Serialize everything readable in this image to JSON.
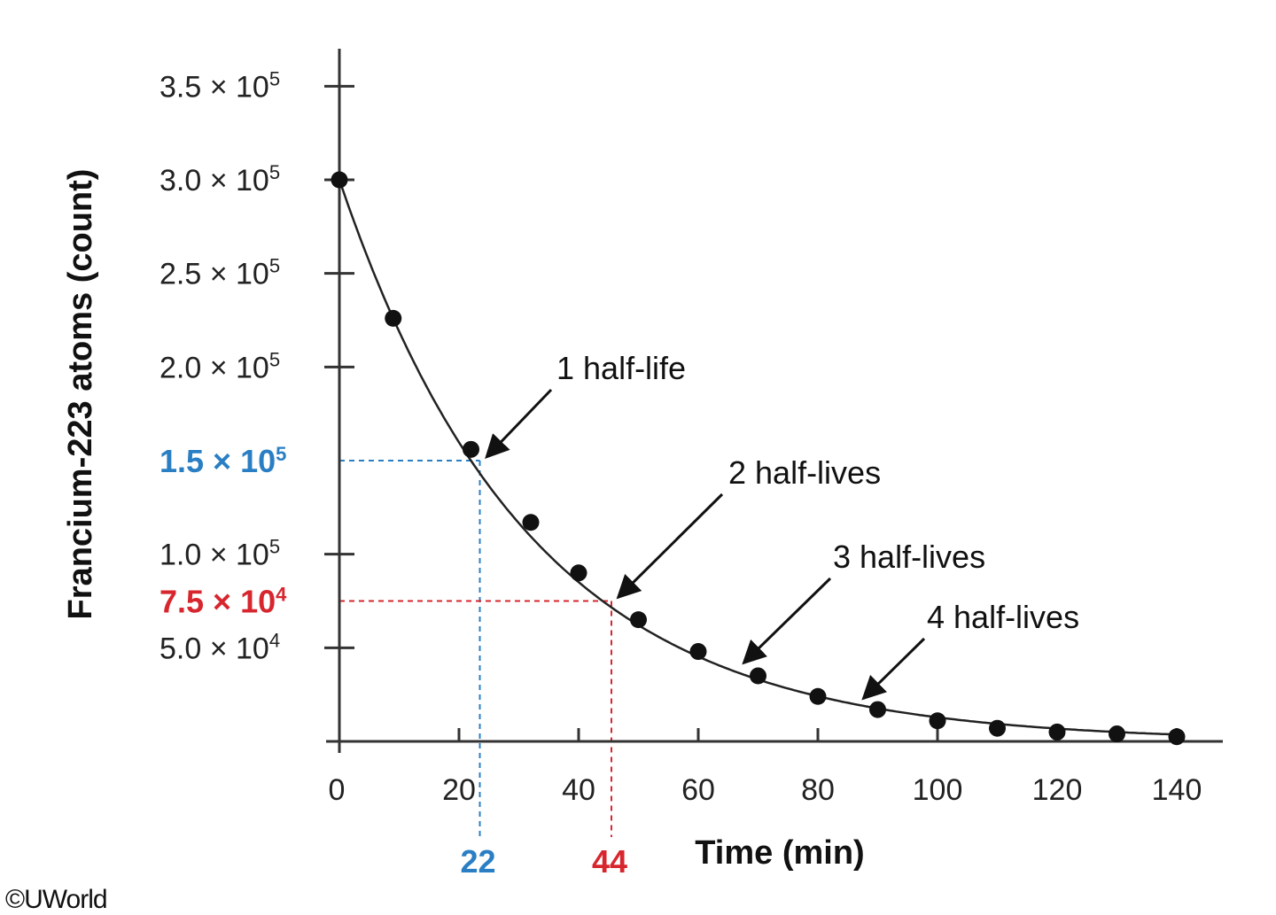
{
  "chart_data": {
    "type": "scatter",
    "title": "",
    "xlabel": "Time (min)",
    "ylabel": "Francium-223 atoms (count)",
    "xlim": [
      0,
      140
    ],
    "ylim": [
      0,
      350000
    ],
    "x_ticks": [
      "0",
      "20",
      "40",
      "60",
      "80",
      "100",
      "120",
      "140"
    ],
    "x_tick_values": [
      0,
      20,
      40,
      60,
      80,
      100,
      120,
      140
    ],
    "y_ticks": [
      {
        "value": 50000,
        "mantissa": "5.0 × 10",
        "exp": "4"
      },
      {
        "value": 100000,
        "mantissa": "1.0 × 10",
        "exp": "5"
      },
      {
        "value": 200000,
        "mantissa": "2.0 × 10",
        "exp": "5"
      },
      {
        "value": 250000,
        "mantissa": "2.5 × 10",
        "exp": "5"
      },
      {
        "value": 300000,
        "mantissa": "3.0 × 10",
        "exp": "5"
      },
      {
        "value": 350000,
        "mantissa": "3.5 × 10",
        "exp": "5"
      }
    ],
    "points": [
      {
        "x": 0,
        "y": 300000
      },
      {
        "x": 9,
        "y": 226000
      },
      {
        "x": 22,
        "y": 156000
      },
      {
        "x": 32,
        "y": 117000
      },
      {
        "x": 40,
        "y": 90000
      },
      {
        "x": 50,
        "y": 65000
      },
      {
        "x": 60,
        "y": 48000
      },
      {
        "x": 70,
        "y": 35000
      },
      {
        "x": 80,
        "y": 24000
      },
      {
        "x": 90,
        "y": 17000
      },
      {
        "x": 100,
        "y": 11000
      },
      {
        "x": 110,
        "y": 7000
      },
      {
        "x": 120,
        "y": 5000
      },
      {
        "x": 130,
        "y": 4000
      },
      {
        "x": 140,
        "y": 2500
      }
    ],
    "fit_curve": {
      "initial": 300000,
      "half_life": 22
    },
    "reference_lines": [
      {
        "x": 22,
        "y": 150000,
        "color": "#2a7fc4",
        "x_label": "22",
        "y_mantissa": "1.5 × 10",
        "y_exp": "5"
      },
      {
        "x": 44,
        "y": 75000,
        "color": "#d7262e",
        "x_label": "44",
        "y_mantissa": "7.5 × 10",
        "y_exp": "4"
      }
    ],
    "annotations": [
      {
        "text": "1 half-life",
        "target_x": 24,
        "target_y": 150000
      },
      {
        "text": "2 half-lives",
        "target_x": 46,
        "target_y": 75000
      },
      {
        "text": "3 half-lives",
        "target_x": 67,
        "target_y": 40000
      },
      {
        "text": "4 half-lives",
        "target_x": 87,
        "target_y": 21000
      }
    ],
    "colors": {
      "axis": "#333333",
      "curve": "#222222",
      "point": "#111111",
      "blue": "#2a7fc4",
      "red": "#d7262e"
    }
  },
  "credit": "©UWorld"
}
